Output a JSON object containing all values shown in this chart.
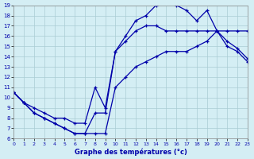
{
  "xlabel": "Graphe des températures (°c)",
  "xlim": [
    0,
    23
  ],
  "ylim": [
    6,
    19
  ],
  "yticks": [
    6,
    7,
    8,
    9,
    10,
    11,
    12,
    13,
    14,
    15,
    16,
    17,
    18,
    19
  ],
  "xticks": [
    0,
    1,
    2,
    3,
    4,
    5,
    6,
    7,
    8,
    9,
    10,
    11,
    12,
    13,
    14,
    15,
    16,
    17,
    18,
    19,
    20,
    21,
    22,
    23
  ],
  "background_color": "#d4eef4",
  "grid_color": "#aaccd4",
  "line_color": "#0000aa",
  "line1_x": [
    0,
    1,
    2,
    3,
    4,
    5,
    6,
    7,
    8,
    9,
    10,
    11,
    12,
    13,
    14,
    15,
    16,
    17,
    18,
    19,
    20,
    21,
    22,
    23
  ],
  "line1_y": [
    10.5,
    9.5,
    8.5,
    8.0,
    7.5,
    7.0,
    6.5,
    6.5,
    8.5,
    8.5,
    14.5,
    16.0,
    17.5,
    18.0,
    19.0,
    19.3,
    19.0,
    18.5,
    17.5,
    18.5,
    16.5,
    15.5,
    14.8,
    13.8
  ],
  "line2_x": [
    0,
    1,
    2,
    3,
    4,
    5,
    6,
    7,
    8,
    9,
    10,
    11,
    12,
    13,
    14,
    15,
    16,
    17,
    18,
    19,
    20,
    21,
    22,
    23
  ],
  "line2_y": [
    10.5,
    9.5,
    9.0,
    8.5,
    8.0,
    8.0,
    7.5,
    7.5,
    11.0,
    9.0,
    14.5,
    15.5,
    16.5,
    17.0,
    17.0,
    16.5,
    16.5,
    16.5,
    16.5,
    16.5,
    16.5,
    16.5,
    16.5,
    16.5
  ],
  "line3_x": [
    0,
    1,
    2,
    3,
    4,
    5,
    6,
    7,
    8,
    9,
    10,
    11,
    12,
    13,
    14,
    15,
    16,
    17,
    18,
    19,
    20,
    21,
    22,
    23
  ],
  "line3_y": [
    10.5,
    9.5,
    8.5,
    8.0,
    7.5,
    7.0,
    6.5,
    6.5,
    6.5,
    6.5,
    11.0,
    12.0,
    13.0,
    13.5,
    14.0,
    14.5,
    14.5,
    14.5,
    15.0,
    15.5,
    16.5,
    15.0,
    14.5,
    13.5
  ]
}
